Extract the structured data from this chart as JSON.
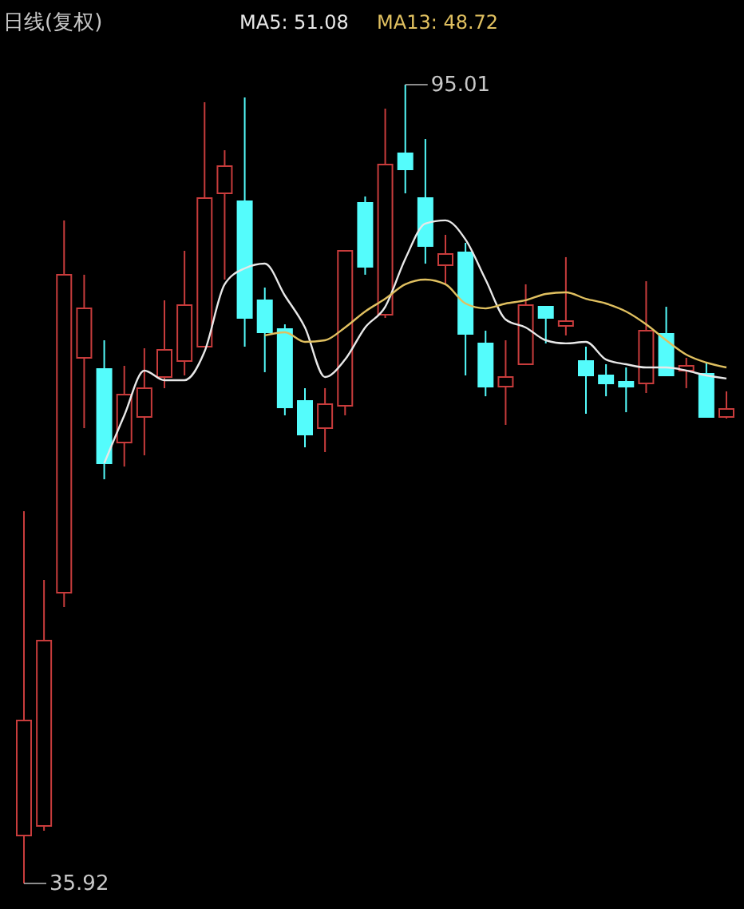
{
  "chart_data": {
    "type": "candlestick",
    "title": "日线(复权)",
    "legend": "top left",
    "categories": [
      null,
      null,
      null,
      null,
      null,
      null,
      null,
      null,
      null,
      null,
      null,
      null,
      null,
      null,
      null,
      null,
      null,
      null,
      null,
      null,
      null,
      null,
      null,
      null,
      null,
      null,
      null,
      null,
      null,
      null,
      null,
      null,
      null,
      null,
      null,
      null
    ],
    "ohlc": [
      [
        39.47,
        63.46,
        35.92,
        47.97
      ],
      [
        40.17,
        58.37,
        39.82,
        53.88
      ],
      [
        57.43,
        84.96,
        56.36,
        80.95
      ],
      [
        74.8,
        80.95,
        69.6,
        78.46
      ],
      [
        73.97,
        76.1,
        65.82,
        67.0
      ],
      [
        68.54,
        74.21,
        66.76,
        72.08
      ],
      [
        70.43,
        75.51,
        67.59,
        72.56
      ],
      [
        73.38,
        79.06,
        72.56,
        75.39
      ],
      [
        74.56,
        82.72,
        73.5,
        78.7
      ],
      [
        75.63,
        93.71,
        75.63,
        86.62
      ],
      [
        86.97,
        90.16,
        80.59,
        88.98
      ],
      [
        86.38,
        94.06,
        75.63,
        77.76
      ],
      [
        79.06,
        80.0,
        73.74,
        76.69
      ],
      [
        76.93,
        77.28,
        70.55,
        71.14
      ],
      [
        71.61,
        72.56,
        68.18,
        69.13
      ],
      [
        69.6,
        72.56,
        67.83,
        71.37
      ],
      [
        71.26,
        82.72,
        70.55,
        82.72
      ],
      [
        86.26,
        86.74,
        80.95,
        81.54
      ],
      [
        77.99,
        93.24,
        77.76,
        89.1
      ],
      [
        89.93,
        95.01,
        86.97,
        88.75
      ],
      [
        86.62,
        90.99,
        81.77,
        83.07
      ],
      [
        81.66,
        83.9,
        80.24,
        82.48
      ],
      [
        82.6,
        83.31,
        73.5,
        76.57
      ],
      [
        75.87,
        76.81,
        71.96,
        72.67
      ],
      [
        72.67,
        76.1,
        69.84,
        73.38
      ],
      [
        74.33,
        80.24,
        74.33,
        78.7
      ],
      [
        78.58,
        78.58,
        75.87,
        77.76
      ],
      [
        77.16,
        82.25,
        76.46,
        77.52
      ],
      [
        74.56,
        75.63,
        70.66,
        73.5
      ],
      [
        73.5,
        74.33,
        71.96,
        72.91
      ],
      [
        73.03,
        74.09,
        70.78,
        72.67
      ],
      [
        72.91,
        80.47,
        72.2,
        76.81
      ],
      [
        76.57,
        78.58,
        73.5,
        73.5
      ],
      [
        73.86,
        74.8,
        72.56,
        74.21
      ],
      [
        73.62,
        74.45,
        70.43,
        70.43
      ],
      [
        70.43,
        72.32,
        70.31,
        71.02
      ]
    ],
    "colors": [
      "#c83c3c",
      "#c83c3c",
      "#c83c3c",
      "#c83c3c",
      "#54fcfc",
      "#c83c3c",
      "#c83c3c",
      "#c83c3c",
      "#c83c3c",
      "#c83c3c",
      "#c83c3c",
      "#54fcfc",
      "#54fcfc",
      "#54fcfc",
      "#54fcfc",
      "#c83c3c",
      "#c83c3c",
      "#54fcfc",
      "#c83c3c",
      "#54fcfc",
      "#54fcfc",
      "#c83c3c",
      "#54fcfc",
      "#54fcfc",
      "#c83c3c",
      "#c83c3c",
      "#54fcfc",
      "#c83c3c",
      "#54fcfc",
      "#54fcfc",
      "#54fcfc",
      "#c83c3c",
      "#54fcfc",
      "#c83c3c",
      "#54fcfc",
      "#c83c3c"
    ],
    "series": [
      {
        "name": "MA5: 51.08",
        "type": "line",
        "color": "#e8e8e8",
        "values": [
          null,
          null,
          null,
          null,
          67.0,
          70.55,
          73.86,
          73.15,
          73.15,
          75.27,
          80.24,
          81.42,
          81.77,
          79.41,
          77.05,
          73.38,
          74.68,
          77.05,
          78.58,
          82.13,
          84.73,
          84.97,
          83.55,
          80.59,
          77.64,
          77.05,
          76.1,
          75.87,
          75.98,
          74.68,
          74.33,
          74.09,
          74.09,
          73.86,
          73.5,
          73.27
        ]
      },
      {
        "name": "MA13: 48.72",
        "type": "line",
        "color": "#e0c060",
        "values": [
          null,
          null,
          null,
          null,
          null,
          null,
          null,
          null,
          null,
          null,
          null,
          null,
          76.46,
          76.69,
          75.98,
          76.1,
          77.05,
          78.23,
          79.17,
          80.24,
          80.59,
          80.24,
          78.82,
          78.46,
          78.82,
          79.06,
          79.53,
          79.65,
          79.17,
          78.82,
          78.23,
          77.28,
          76.1,
          75.04,
          74.45,
          74.09
        ]
      }
    ],
    "annotations": [
      "95.01",
      "35.92"
    ]
  }
}
